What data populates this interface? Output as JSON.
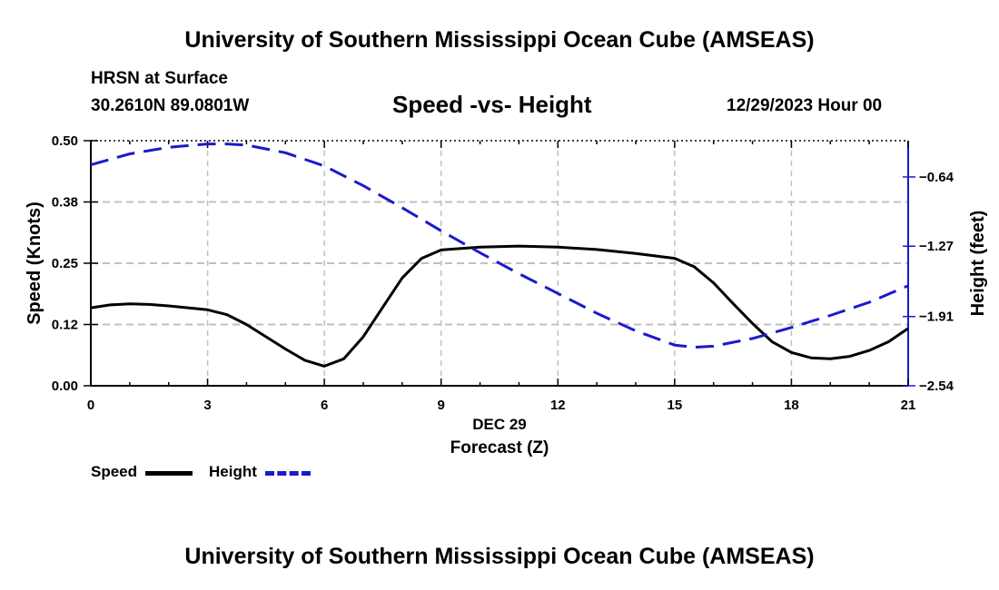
{
  "header": {
    "title_top": "University of Southern Mississippi Ocean Cube (AMSEAS)",
    "title_bottom": "University of Southern Mississippi Ocean Cube (AMSEAS)",
    "location_line1": "HRSN at Surface",
    "location_line2": "30.2610N  89.0801W",
    "date": "12/29/2023 Hour 00"
  },
  "legend": {
    "speed_label": "Speed",
    "height_label": "Height"
  },
  "colors": {
    "speed": "#000000",
    "height": "#1a1acc",
    "grid": "#c0c0c0"
  },
  "chart_data": {
    "type": "line",
    "title": "Speed -vs- Height",
    "xlabel": "Forecast (Z)",
    "xlabel_date": "DEC 29",
    "ylabel": "Speed (Knots)",
    "y2label": "Height (feet)",
    "grid": true,
    "legend_position": "bottom-left",
    "xlim": [
      0,
      21
    ],
    "ylim": [
      0,
      0.5
    ],
    "y2lim": [
      -2.54,
      -0.31
    ],
    "x_ticks": [
      0,
      3,
      6,
      9,
      12,
      15,
      18,
      21
    ],
    "x_tick_labels": [
      "0",
      "3",
      "6",
      "9",
      "12",
      "15",
      "18",
      "21"
    ],
    "y_ticks": [
      0,
      0.125,
      0.25,
      0.375,
      0.5
    ],
    "y_tick_labels": [
      "0.00",
      "0.12",
      "0.25",
      "0.38",
      "0.50"
    ],
    "y2_ticks": [
      -2.54,
      -1.91,
      -1.27,
      -0.64
    ],
    "y2_tick_labels": [
      "−2.54",
      "−1.91",
      "−1.27",
      "−0.64"
    ],
    "series": [
      {
        "name": "Speed",
        "axis": "left",
        "style": "solid",
        "x": [
          0,
          0.5,
          1,
          1.5,
          2,
          2.5,
          3,
          3.5,
          4,
          4.5,
          5,
          5.5,
          6,
          6.5,
          7,
          7.5,
          8,
          8.5,
          9,
          10,
          11,
          12,
          13,
          14,
          15,
          15.5,
          16,
          16.5,
          17,
          17.5,
          18,
          18.5,
          19,
          19.5,
          20,
          20.5,
          21
        ],
        "values": [
          0.159,
          0.165,
          0.167,
          0.166,
          0.163,
          0.159,
          0.155,
          0.145,
          0.125,
          0.1,
          0.075,
          0.052,
          0.04,
          0.055,
          0.1,
          0.16,
          0.22,
          0.26,
          0.277,
          0.283,
          0.285,
          0.283,
          0.278,
          0.27,
          0.26,
          0.243,
          0.21,
          0.168,
          0.127,
          0.09,
          0.068,
          0.057,
          0.055,
          0.06,
          0.072,
          0.09,
          0.117
        ]
      },
      {
        "name": "Height",
        "axis": "right",
        "style": "dashed",
        "x": [
          0,
          1,
          2,
          3,
          3.5,
          4,
          5,
          6,
          7,
          8,
          9,
          10,
          11,
          12,
          13,
          14,
          15,
          15.5,
          16,
          17,
          18,
          19,
          20,
          21
        ],
        "values": [
          -0.53,
          -0.43,
          -0.37,
          -0.34,
          -0.34,
          -0.35,
          -0.42,
          -0.54,
          -0.72,
          -0.92,
          -1.13,
          -1.33,
          -1.52,
          -1.7,
          -1.88,
          -2.04,
          -2.17,
          -2.19,
          -2.18,
          -2.11,
          -2.01,
          -1.9,
          -1.78,
          -1.63
        ]
      }
    ]
  }
}
